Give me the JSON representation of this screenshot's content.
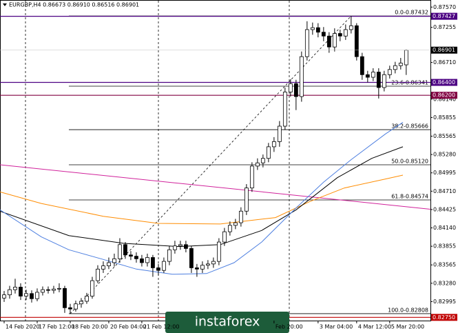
{
  "chart_data": {
    "type": "candlestick",
    "title": "EURGBP,H4  0.86673 0.86910 0.86516 0.86901",
    "watermark": "instaforex",
    "open": [
      0.8305,
      0.831,
      0.8318,
      0.8322,
      0.8308,
      0.8312,
      0.8304,
      0.8314,
      0.8318,
      0.8317,
      0.8319,
      0.832,
      0.829,
      0.8288,
      0.8296,
      0.83,
      0.8308,
      0.8332,
      0.835,
      0.8355,
      0.836,
      0.8366,
      0.8388,
      0.8372,
      0.837,
      0.8366,
      0.836,
      0.8368,
      0.8352,
      0.8348,
      0.8362,
      0.838,
      0.8386,
      0.8388,
      0.8382,
      0.8352,
      0.835,
      0.8356,
      0.8358,
      0.8362,
      0.8392,
      0.8408,
      0.8418,
      0.8422,
      0.844,
      0.8476,
      0.851,
      0.8515,
      0.8522,
      0.854,
      0.8548,
      0.8572,
      0.8625,
      0.8638,
      0.8618,
      0.868,
      0.8722,
      0.8725,
      0.8718,
      0.8712,
      0.8695,
      0.8716,
      0.8712,
      0.8722,
      0.8728,
      0.868,
      0.8652,
      0.8648,
      0.8656,
      0.8632,
      0.8652,
      0.866,
      0.8666,
      0.86673
    ],
    "high": [
      0.8316,
      0.8324,
      0.8335,
      0.8328,
      0.8318,
      0.8317,
      0.832,
      0.8323,
      0.8323,
      0.8324,
      0.8328,
      0.8324,
      0.8296,
      0.8301,
      0.8305,
      0.8313,
      0.8338,
      0.8356,
      0.8362,
      0.8368,
      0.8374,
      0.8398,
      0.8392,
      0.8378,
      0.8376,
      0.8372,
      0.8374,
      0.8372,
      0.8358,
      0.8368,
      0.8386,
      0.8394,
      0.8394,
      0.8394,
      0.8386,
      0.8358,
      0.8362,
      0.8364,
      0.8368,
      0.8398,
      0.8414,
      0.8424,
      0.8428,
      0.8446,
      0.8482,
      0.8516,
      0.8522,
      0.8528,
      0.8546,
      0.8555,
      0.858,
      0.8632,
      0.8645,
      0.8644,
      0.8688,
      0.8735,
      0.8733,
      0.8732,
      0.8726,
      0.8718,
      0.8724,
      0.8722,
      0.873,
      0.87432,
      0.8732,
      0.8686,
      0.8658,
      0.8662,
      0.8662,
      0.8658,
      0.8666,
      0.8672,
      0.8678,
      0.8691
    ],
    "low": [
      0.8299,
      0.8304,
      0.8312,
      0.8302,
      0.8302,
      0.8298,
      0.83,
      0.8309,
      0.8312,
      0.8312,
      0.8314,
      0.8282,
      0.8281,
      0.8284,
      0.829,
      0.8296,
      0.8304,
      0.8328,
      0.8344,
      0.835,
      0.8354,
      0.836,
      0.8366,
      0.8364,
      0.836,
      0.8354,
      0.8354,
      0.8338,
      0.834,
      0.8344,
      0.8356,
      0.8374,
      0.838,
      0.8376,
      0.8344,
      0.8338,
      0.8344,
      0.835,
      0.8352,
      0.8356,
      0.8386,
      0.8402,
      0.8412,
      0.8416,
      0.8434,
      0.847,
      0.8504,
      0.8508,
      0.8516,
      0.8532,
      0.854,
      0.8566,
      0.8618,
      0.8597,
      0.861,
      0.8674,
      0.8714,
      0.871,
      0.8704,
      0.8686,
      0.8688,
      0.8704,
      0.8706,
      0.8716,
      0.8674,
      0.8644,
      0.864,
      0.8642,
      0.8615,
      0.8626,
      0.8646,
      0.8654,
      0.866,
      0.86516
    ],
    "close": [
      0.831,
      0.8318,
      0.8322,
      0.8308,
      0.8312,
      0.8304,
      0.8314,
      0.8318,
      0.8317,
      0.8319,
      0.832,
      0.829,
      0.8288,
      0.8296,
      0.83,
      0.8308,
      0.8332,
      0.835,
      0.8355,
      0.836,
      0.8366,
      0.8388,
      0.8372,
      0.837,
      0.8366,
      0.836,
      0.8368,
      0.8352,
      0.8348,
      0.8362,
      0.838,
      0.8386,
      0.8388,
      0.8382,
      0.8352,
      0.835,
      0.8356,
      0.8358,
      0.8362,
      0.8392,
      0.8408,
      0.8418,
      0.8422,
      0.844,
      0.8476,
      0.851,
      0.8515,
      0.8522,
      0.854,
      0.8548,
      0.8572,
      0.8625,
      0.8638,
      0.8618,
      0.868,
      0.8722,
      0.8725,
      0.8718,
      0.8712,
      0.8695,
      0.8716,
      0.8712,
      0.8722,
      0.8728,
      0.868,
      0.8652,
      0.8648,
      0.8656,
      0.8632,
      0.8652,
      0.866,
      0.8666,
      0.867,
      0.86901
    ],
    "ylim": [
      0.827,
      0.8768
    ],
    "xlim": [
      -0.75,
      77.4
    ],
    "yticks": [
      {
        "value": 0.8757,
        "label": "0.87570"
      },
      0.87255,
      {
        "value": 0.8671,
        "label": "0.86710"
      },
      {
        "value": 0.8614,
        "label": "0.86140"
      },
      0.85855,
      0.85565,
      {
        "value": 0.8528,
        "label": "0.85280"
      },
      0.84995,
      {
        "value": 0.8471,
        "label": "0.84710"
      },
      0.84425,
      {
        "value": 0.8414,
        "label": "0.84140"
      },
      0.83855,
      0.83565,
      {
        "value": 0.8328,
        "label": "0.83280"
      },
      0.82995
    ],
    "xticks": [
      {
        "value": 0,
        "label": "14 Feb 2020"
      },
      {
        "value": 6,
        "label": "17 Feb 12:00"
      },
      {
        "value": 12,
        "label": "18 Feb 20:00"
      },
      {
        "value": 19,
        "label": "20 Feb 04:00"
      },
      {
        "value": 25,
        "label": "21 Feb 12:00"
      },
      {
        "value": 49,
        "label": "Feb 20:00"
      },
      {
        "value": 57,
        "label": "3 Mar 04:00"
      },
      {
        "value": 64,
        "label": "4 Mar 12:00"
      },
      {
        "value": 70,
        "label": "5 Mar 20:00"
      }
    ],
    "series": [
      {
        "color": "#d0209a",
        "x": [
          -0.75,
          77.4
        ],
        "values": [
          0.8512,
          0.8443
        ]
      },
      {
        "color": "#ff8c00",
        "x": [
          -0.75,
          6.75,
          18,
          28,
          39.25,
          49.25,
          55.5,
          61.75,
          69.25,
          72.4
        ],
        "values": [
          0.847,
          0.8452,
          0.8432,
          0.8421,
          0.842,
          0.843,
          0.8455,
          0.8476,
          0.849,
          0.8496
        ]
      },
      {
        "color": "#000000",
        "x": [
          -0.75,
          11.75,
          21.75,
          31.75,
          39.25,
          46.75,
          53,
          60.5,
          66.75,
          72.4
        ],
        "values": [
          0.844,
          0.8402,
          0.839,
          0.8385,
          0.8388,
          0.841,
          0.8442,
          0.8492,
          0.8522,
          0.854
        ]
      },
      {
        "color": "#4d7fe0",
        "x": [
          -0.75,
          6.75,
          11.75,
          18,
          24,
          30.5,
          36.75,
          41.75,
          46.75,
          53,
          58,
          63,
          69.25,
          72.4
        ],
        "values": [
          0.8442,
          0.84,
          0.838,
          0.8365,
          0.835,
          0.8342,
          0.8343,
          0.836,
          0.8392,
          0.8445,
          0.8485,
          0.852,
          0.856,
          0.8578
        ]
      }
    ],
    "fib": [
      {
        "value": 0.87432,
        "label": "0.0-0.87432"
      },
      {
        "value": 0.86341,
        "label": "23.6-0.86341"
      },
      {
        "value": 0.85666,
        "label": "38.2-0.85666"
      },
      {
        "value": 0.8512,
        "label": "50.0-0.85120"
      },
      {
        "value": 0.84574,
        "label": "61.8-0.84574"
      },
      {
        "value": 0.82808,
        "label": "100.0-0.82808"
      }
    ],
    "levels": [
      {
        "value": 0.87427,
        "label": "0.87427",
        "color": "#4b0082"
      },
      {
        "value": 0.864,
        "label": "0.86400",
        "color": "#4b0082"
      },
      {
        "value": 0.862,
        "label": "0.86200",
        "color": "#800040"
      },
      {
        "value": 0.8275,
        "label": "0.82750",
        "color": "#c00000"
      }
    ],
    "price": {
      "value": 0.86901,
      "label": "0.86901"
    }
  }
}
